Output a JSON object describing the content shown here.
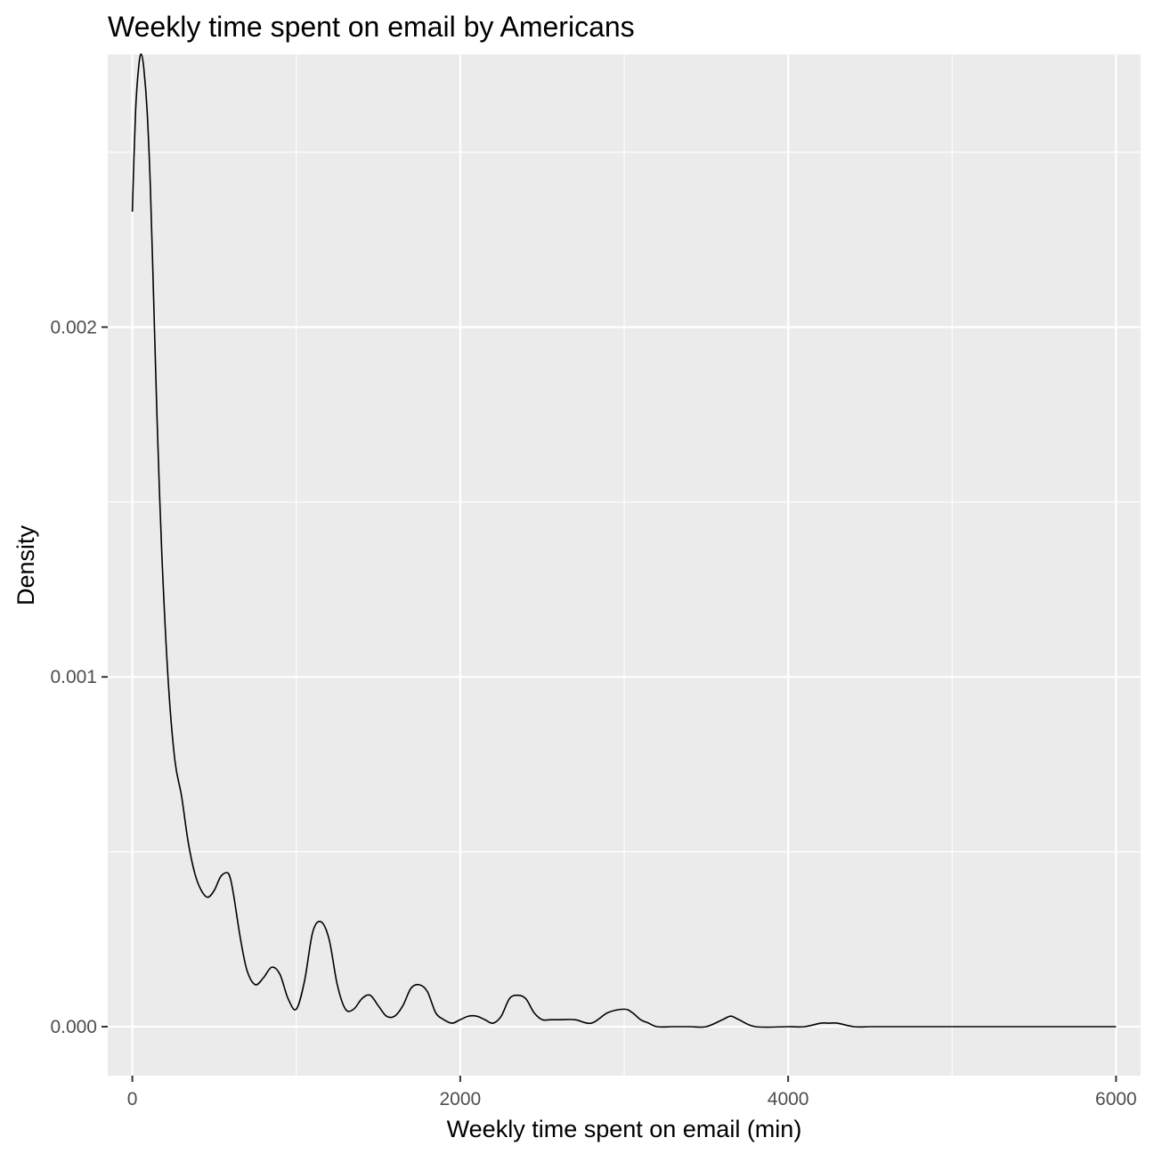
{
  "chart_data": {
    "type": "area",
    "title": "Weekly time spent on email by Americans",
    "xlabel": "Weekly time spent on email (min)",
    "ylabel": "Density",
    "xlim": [
      -150,
      6150
    ],
    "ylim": [
      -0.00014,
      0.00278
    ],
    "x_ticks": [
      0,
      2000,
      4000,
      6000
    ],
    "x_tick_labels": [
      "0",
      "2000",
      "4000",
      "6000"
    ],
    "y_ticks": [
      0.0,
      0.001,
      0.002
    ],
    "y_tick_labels": [
      "0.000",
      "0.001",
      "0.002"
    ],
    "grid": true,
    "legend": "none",
    "colors": {
      "panel_background": "#ebebeb",
      "grid_line": "#ffffff",
      "curve": "#000000",
      "tick_label": "#4d4d4d"
    },
    "series": [
      {
        "x": [
          0,
          20,
          40,
          55,
          70,
          90,
          110,
          130,
          150,
          180,
          220,
          260,
          300,
          340,
          380,
          420,
          460,
          500,
          540,
          580,
          600,
          620,
          660,
          700,
          750,
          800,
          850,
          900,
          950,
          1000,
          1050,
          1100,
          1150,
          1200,
          1250,
          1300,
          1350,
          1400,
          1450,
          1500,
          1550,
          1600,
          1650,
          1700,
          1750,
          1800,
          1850,
          1900,
          1950,
          2000,
          2050,
          2100,
          2150,
          2200,
          2250,
          2300,
          2350,
          2400,
          2450,
          2500,
          2550,
          2600,
          2700,
          2800,
          2900,
          3000,
          3050,
          3100,
          3150,
          3200,
          3300,
          3400,
          3500,
          3600,
          3650,
          3700,
          3800,
          4000,
          4100,
          4200,
          4250,
          4300,
          4400,
          4500,
          4600,
          4800,
          5000,
          5200,
          5400,
          5600,
          5800,
          6000
        ],
        "y": [
          0.00233,
          0.00262,
          0.00275,
          0.00278,
          0.00274,
          0.00262,
          0.0024,
          0.00208,
          0.00175,
          0.00135,
          0.00098,
          0.00076,
          0.00066,
          0.00053,
          0.00044,
          0.00039,
          0.00037,
          0.00039,
          0.00043,
          0.00044,
          0.00042,
          0.00037,
          0.00025,
          0.00016,
          0.00012,
          0.00014,
          0.00017,
          0.00015,
          8e-05,
          5e-05,
          0.00013,
          0.00027,
          0.0003,
          0.00025,
          0.00012,
          5e-05,
          5e-05,
          8e-05,
          9e-05,
          6e-05,
          3e-05,
          3e-05,
          6e-05,
          0.00011,
          0.00012,
          0.0001,
          4e-05,
          2e-05,
          1e-05,
          2e-05,
          3e-05,
          3e-05,
          2e-05,
          1e-05,
          3e-05,
          8e-05,
          9e-05,
          8e-05,
          4e-05,
          2e-05,
          2e-05,
          2e-05,
          2e-05,
          1e-05,
          4e-05,
          5e-05,
          4e-05,
          2e-05,
          1e-05,
          0.0,
          0.0,
          0.0,
          0.0,
          2e-05,
          3e-05,
          2e-05,
          0.0,
          0.0,
          0.0,
          1e-05,
          1e-05,
          1e-05,
          0.0,
          0.0,
          0.0,
          0.0,
          0.0,
          0.0,
          0.0,
          0.0,
          0.0,
          0.0
        ]
      }
    ]
  }
}
